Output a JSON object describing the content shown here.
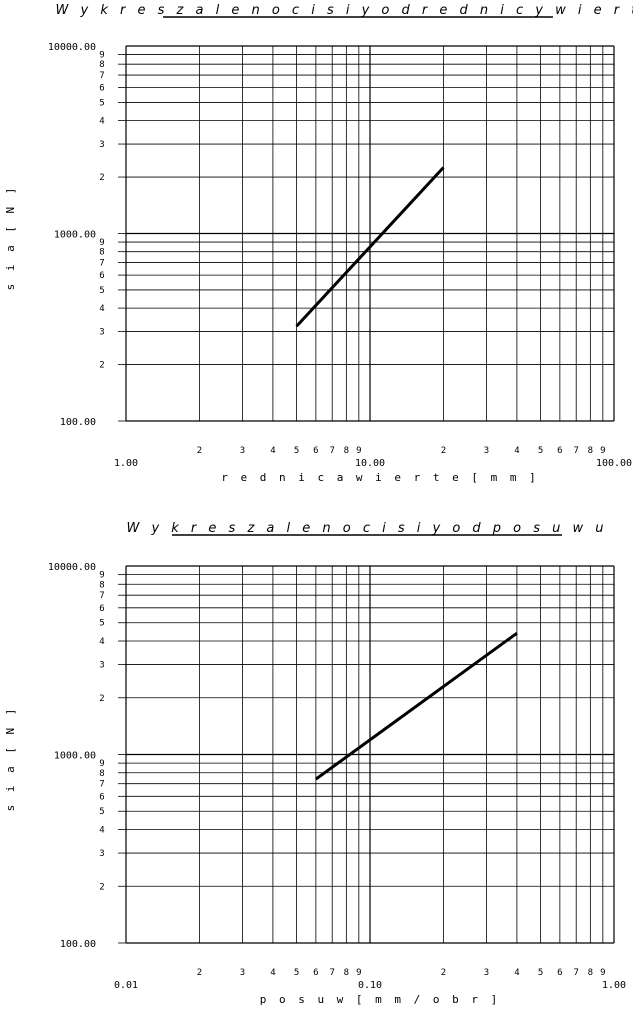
{
  "chart_data": [
    {
      "type": "line",
      "title": "W y k r e s   z a l e   n o   c i s i y   o d   r e d n i c y   w i e r t e",
      "xlabel": "r e d n i c a   w i e r t e   [ m m ]",
      "ylabel": "s i a   [ N ]",
      "xscale": "log",
      "yscale": "log",
      "xlim": [
        1,
        100
      ],
      "ylim": [
        100,
        10000
      ],
      "grid": true,
      "x_major_ticks": [
        {
          "value": 1,
          "label": "1.00"
        },
        {
          "value": 10,
          "label": "10.00"
        },
        {
          "value": 100,
          "label": "100.00"
        }
      ],
      "y_major_ticks": [
        {
          "value": 100,
          "label": "100.00"
        },
        {
          "value": 1000,
          "label": "1000.00"
        },
        {
          "value": 10000,
          "label": "10000.00"
        }
      ],
      "minor_tick_labels": [
        "2",
        "3",
        "4",
        "5",
        "6",
        "7",
        "8",
        "9"
      ],
      "series": [
        {
          "x": [
            5,
            20
          ],
          "y": [
            320,
            2250
          ]
        }
      ]
    },
    {
      "type": "line",
      "title": "W y k r e s   z a l e   n o   c i s i y   o d   p o s u w u",
      "xlabel": "p o s u w   [ m m / o b r ]",
      "ylabel": "s i a   [ N ]",
      "xscale": "log",
      "yscale": "log",
      "xlim": [
        0.01,
        1
      ],
      "ylim": [
        100,
        10000
      ],
      "grid": true,
      "x_major_ticks": [
        {
          "value": 0.01,
          "label": "0.01"
        },
        {
          "value": 0.1,
          "label": "0.10"
        },
        {
          "value": 1,
          "label": "1.00"
        }
      ],
      "y_major_ticks": [
        {
          "value": 100,
          "label": "100.00"
        },
        {
          "value": 1000,
          "label": "1000.00"
        },
        {
          "value": 10000,
          "label": "10000.00"
        }
      ],
      "minor_tick_labels": [
        "2",
        "3",
        "4",
        "5",
        "6",
        "7",
        "8",
        "9"
      ],
      "series": [
        {
          "x": [
            0.06,
            0.4
          ],
          "y": [
            740,
            4400
          ]
        }
      ]
    }
  ]
}
